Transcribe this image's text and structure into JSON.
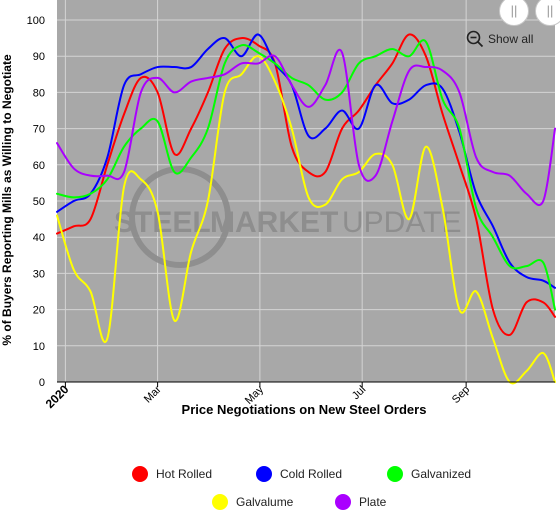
{
  "chart_data": {
    "type": "line",
    "title": "",
    "xlabel": "Price Negotiations on New Steel Orders",
    "ylabel": "% of Buyers Reporting Mills as Willing to Negotiate",
    "ylim": [
      0,
      100
    ],
    "yticks": [
      0,
      10,
      20,
      30,
      40,
      50,
      60,
      70,
      80,
      90,
      100
    ],
    "xrange": [
      "2020-01-01",
      "2020-10-24"
    ],
    "xticks": [
      {
        "date": "2020-01-06",
        "label": "2020"
      },
      {
        "date": "2020-03-01",
        "label": "Mar"
      },
      {
        "date": "2020-05-01",
        "label": "May"
      },
      {
        "date": "2020-07-01",
        "label": "Jul"
      },
      {
        "date": "2020-09-01",
        "label": "Sep"
      }
    ],
    "grid": true,
    "legend_position": "bottom",
    "x": [
      "2020-01-01",
      "2020-01-11",
      "2020-01-21",
      "2020-01-31",
      "2020-02-10",
      "2020-02-20",
      "2020-03-01",
      "2020-03-11",
      "2020-03-21",
      "2020-03-31",
      "2020-04-10",
      "2020-04-20",
      "2020-04-30",
      "2020-05-10",
      "2020-05-20",
      "2020-05-30",
      "2020-06-09",
      "2020-06-19",
      "2020-06-29",
      "2020-07-09",
      "2020-07-19",
      "2020-07-29",
      "2020-08-08",
      "2020-08-18",
      "2020-08-28",
      "2020-09-07",
      "2020-09-17",
      "2020-09-27",
      "2020-10-07",
      "2020-10-17",
      "2020-10-24"
    ],
    "series": [
      {
        "name": "Hot Rolled",
        "color": "#ff0000",
        "values": [
          41,
          43,
          45,
          60,
          74,
          84,
          80,
          63,
          70,
          80,
          92,
          95,
          93,
          88,
          65,
          58,
          58,
          70,
          75,
          82,
          88,
          96,
          90,
          74,
          60,
          45,
          20,
          13,
          22,
          22,
          18
        ]
      },
      {
        "name": "Cold Rolled",
        "color": "#0000ff",
        "values": [
          47,
          50,
          52,
          62,
          82,
          85,
          87,
          87,
          87,
          92,
          95,
          90,
          96,
          88,
          82,
          68,
          70,
          75,
          70,
          82,
          77,
          78,
          82,
          81,
          69,
          52,
          43,
          33,
          29,
          28,
          26
        ]
      },
      {
        "name": "Galvanized",
        "color": "#00ff00",
        "values": [
          52,
          51,
          52,
          56,
          65,
          70,
          72,
          58,
          62,
          70,
          88,
          93,
          91,
          88,
          84,
          82,
          78,
          80,
          88,
          90,
          92,
          90,
          94,
          78,
          70,
          48,
          40,
          32,
          32,
          33,
          20
        ]
      },
      {
        "name": "Galvalume",
        "color": "#ffff00",
        "values": [
          46,
          31,
          25,
          12,
          54,
          56,
          47,
          17,
          36,
          50,
          80,
          85,
          90,
          83,
          70,
          51,
          49,
          56,
          58,
          63,
          60,
          45,
          65,
          48,
          20,
          25,
          12,
          0,
          3,
          8,
          0
        ]
      },
      {
        "name": "Plate",
        "color": "#aa00ff",
        "values": [
          66,
          59,
          57,
          57,
          58,
          80,
          84,
          80,
          83,
          84,
          85,
          88,
          88,
          90,
          82,
          76,
          82,
          91,
          60,
          57,
          72,
          86,
          87,
          86,
          80,
          62,
          58,
          57,
          52,
          50,
          70
        ]
      }
    ]
  },
  "toolbar": {
    "show_all_label": "Show all",
    "scroll_left_symbol": "||",
    "scroll_right_symbol": "||"
  },
  "watermark": {
    "steel": "STEEL",
    "market": "MARKET",
    "update": "UPDATE"
  },
  "colors": {
    "plot_background": "#a8a8a8",
    "grid": "#d4d4d4",
    "watermark": "#8c8c8c"
  }
}
